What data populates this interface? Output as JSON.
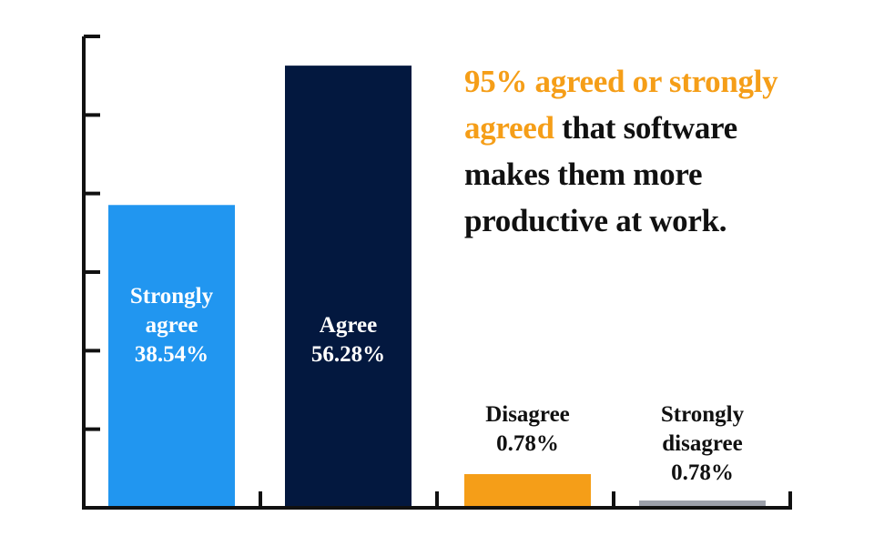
{
  "chart_data": {
    "type": "bar",
    "title": "",
    "xlabel": "",
    "ylabel": "",
    "ylim": [
      0,
      60
    ],
    "grid": false,
    "legend": "none",
    "categories": [
      "Strongly agree",
      "Agree",
      "Disagree",
      "Strongly disagree"
    ],
    "values": [
      38.54,
      56.28,
      0.78,
      0.78
    ],
    "value_labels": [
      "38.54%",
      "56.28%",
      "0.78%",
      "0.78%"
    ],
    "colors": [
      "#2196f0",
      "#03183f",
      "#f59e18",
      "#9ca0aa"
    ],
    "label_colors": [
      "#ffffff",
      "#ffffff",
      "#111111",
      "#111111"
    ],
    "annotation": {
      "highlight": "95% agreed or strongly agreed",
      "rest": " that software makes them more productive at work.",
      "highlight_color": "#f59e18"
    }
  }
}
